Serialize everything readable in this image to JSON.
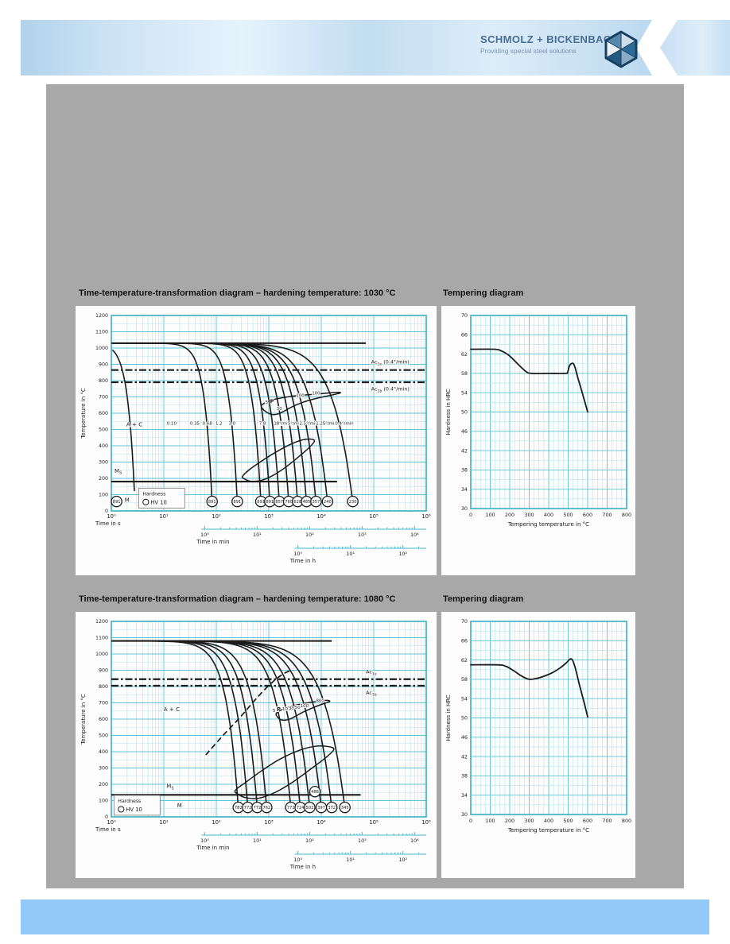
{
  "header": {
    "brand": "SCHMOLZ + BICKENBACH",
    "tagline": "Providing special steel solutions"
  },
  "colors": {
    "grid_minor": "#b5e2ec",
    "grid_major": "#5ec5d6",
    "frame": "#3aaec6",
    "curve": "#1b1b1b",
    "scalebar": "#45b8cc",
    "text": "#1a1a1a",
    "panel_gray": "#a8a8a8",
    "footer_blue": "#93c9f9",
    "brand_text": "#4a6d96",
    "brand_tagline": "#7e95ae"
  },
  "chart_data": [
    {
      "kind": "ttt",
      "type": "line",
      "title": "Time-temperature-transformation diagram – hardening temperature: 1030 °C",
      "hold_temp": 1030,
      "hold_end_log": 4.85,
      "ylabel": "Temperature in °C",
      "ylim": [
        0,
        1200
      ],
      "y_ticks": [
        0,
        100,
        200,
        300,
        400,
        500,
        600,
        700,
        800,
        900,
        1000,
        1100,
        1200
      ],
      "xlim_log": [
        0,
        6
      ],
      "x_tick_labels": [
        "10⁰",
        "10¹",
        "10²",
        "10³",
        "10⁴",
        "10⁵",
        "10⁶"
      ],
      "time_s_label": "Time in s",
      "min_scale": {
        "label": "Time in min",
        "tick_labels": [
          "10⁰",
          "10¹",
          "10²",
          "10³",
          "10⁴"
        ],
        "start_log": 1.778
      },
      "h_scale": {
        "label": "Time in h",
        "tick_labels": [
          "10⁰",
          "10¹",
          "10²"
        ],
        "start_log": 3.556
      },
      "ac_lines": [
        {
          "temp": 865,
          "main": "Ac",
          "sub": "1e",
          "rest": " (0.4°/min)",
          "label_log": 4.95,
          "label_temp": 905
        },
        {
          "temp": 790,
          "main": "Ac",
          "sub": "1b",
          "rest": " (0.4°/min)",
          "label_log": 4.95,
          "label_temp": 738
        }
      ],
      "ms_line": {
        "temp": 180,
        "end_log": 4.3,
        "label_main": "M",
        "label_sub": "S",
        "label_log": 0.06,
        "label_temp": 235
      },
      "region_label": {
        "text": "A + C",
        "log": 0.44,
        "temp": 520
      },
      "m_label": {
        "text": "M",
        "log": 0.3,
        "temp": 55
      },
      "legend": {
        "title": "Hardness",
        "circle_label": "HV 10",
        "log": 0.52,
        "temp": 140
      },
      "curve_ends": [
        0.45,
        1.92,
        2.4,
        2.85,
        3.02,
        3.2,
        3.38,
        3.55,
        3.72,
        3.9,
        4.12,
        4.6
      ],
      "steep_max": 3.2,
      "steep_min": 1.15,
      "circles": [
        {
          "log": 0.1,
          "value": "891"
        },
        {
          "log": 1.92,
          "value": "891"
        },
        {
          "log": 2.4,
          "value": "891"
        },
        {
          "log": 2.85,
          "value": "891"
        },
        {
          "log": 3.02,
          "value": "891"
        },
        {
          "log": 3.2,
          "value": "857"
        },
        {
          "log": 3.38,
          "value": "760"
        },
        {
          "log": 3.55,
          "value": "628"
        },
        {
          "log": 3.72,
          "value": "485"
        },
        {
          "log": 3.9,
          "value": "357"
        },
        {
          "log": 4.12,
          "value": "240"
        },
        {
          "log": 4.6,
          "value": "230"
        }
      ],
      "extra_circles": [],
      "rate_label_temp": 530,
      "rate_labels": [
        {
          "t": "0.10",
          "log": 1.15
        },
        {
          "t": "0.35",
          "log": 1.59
        },
        {
          "t": "0.68",
          "log": 1.83
        },
        {
          "t": "1.2",
          "log": 2.05
        },
        {
          "t": "3.0",
          "log": 2.3
        },
        {
          "t": "7.8",
          "log": 2.88
        },
        {
          "t": "18°/min",
          "log": 3.26
        },
        {
          "t": "5°/min",
          "log": 3.5
        },
        {
          "t": "2.5°/min",
          "log": 3.76
        },
        {
          "t": "1.25°/min",
          "log": 4.1
        },
        {
          "t": "0.4°/min",
          "log": 4.44
        }
      ],
      "p_labels": [
        {
          "t": "5",
          "log": 2.96,
          "temp": 658
        },
        {
          "t": "P",
          "log": 3.06,
          "temp": 660
        },
        {
          "t": "30",
          "log": 3.2,
          "temp": 620
        },
        {
          "t": "100",
          "log": 3.6,
          "temp": 700
        },
        {
          "t": "100",
          "log": 3.9,
          "temp": 714
        }
      ],
      "lenses": [
        [
          [
            2.86,
            648
          ],
          [
            2.96,
            668
          ],
          [
            3.12,
            686
          ],
          [
            3.4,
            702
          ],
          [
            3.7,
            712
          ],
          [
            4.0,
            720
          ],
          [
            4.3,
            728
          ],
          [
            4.36,
            724
          ],
          [
            4.18,
            710
          ],
          [
            3.92,
            692
          ],
          [
            3.66,
            668
          ],
          [
            3.46,
            642
          ],
          [
            3.3,
            614
          ],
          [
            3.18,
            596
          ],
          [
            3.06,
            592
          ],
          [
            2.96,
            606
          ],
          [
            2.88,
            628
          ]
        ],
        [
          [
            2.5,
            212
          ],
          [
            2.64,
            256
          ],
          [
            2.88,
            310
          ],
          [
            3.14,
            362
          ],
          [
            3.42,
            410
          ],
          [
            3.64,
            436
          ],
          [
            3.8,
            441
          ],
          [
            3.87,
            428
          ],
          [
            3.76,
            386
          ],
          [
            3.56,
            330
          ],
          [
            3.32,
            268
          ],
          [
            3.08,
            218
          ],
          [
            2.86,
            188
          ],
          [
            2.66,
            182
          ],
          [
            2.54,
            196
          ]
        ]
      ],
      "dashed_line": null
    },
    {
      "kind": "tempering",
      "type": "line",
      "title": "Tempering diagram",
      "xlabel": "Tempering temperature in °C",
      "ylabel": "Hardness in HRC",
      "xlim": [
        0,
        800
      ],
      "ylim": [
        30,
        70
      ],
      "x_ticks": [
        0,
        100,
        200,
        300,
        400,
        500,
        600,
        700,
        800
      ],
      "y_ticks": [
        30,
        34,
        38,
        42,
        46,
        50,
        54,
        58,
        62,
        66,
        70
      ],
      "minor_x": 25,
      "minor_y": 2,
      "points": [
        [
          0,
          63
        ],
        [
          120,
          63
        ],
        [
          160,
          62.6
        ],
        [
          200,
          61.6
        ],
        [
          240,
          60
        ],
        [
          280,
          58.5
        ],
        [
          310,
          58
        ],
        [
          400,
          58
        ],
        [
          485,
          58
        ],
        [
          497,
          58.2
        ],
        [
          505,
          59.4
        ],
        [
          515,
          60
        ],
        [
          527,
          60
        ],
        [
          537,
          59
        ],
        [
          548,
          57.3
        ],
        [
          565,
          55
        ],
        [
          582,
          52.6
        ],
        [
          600,
          50
        ]
      ]
    },
    {
      "kind": "ttt",
      "type": "line",
      "title": "Time-temperature-transformation diagram – hardening temperature: 1080 °C",
      "hold_temp": 1080,
      "hold_end_log": 4.2,
      "ylabel": "Temperature in °C",
      "ylim": [
        0,
        1200
      ],
      "y_ticks": [
        0,
        100,
        200,
        300,
        400,
        500,
        600,
        700,
        800,
        900,
        1000,
        1100,
        1200
      ],
      "xlim_log": [
        0,
        6
      ],
      "x_tick_labels": [
        "10⁰",
        "10¹",
        "10²",
        "10³",
        "10⁴",
        "10⁵",
        "10⁶"
      ],
      "time_s_label": "Time in s",
      "min_scale": {
        "label": "Time in min",
        "tick_labels": [
          "10⁰",
          "10¹",
          "10²",
          "10³",
          "10⁴"
        ],
        "start_log": 1.778
      },
      "h_scale": {
        "label": "Time in h",
        "tick_labels": [
          "10⁰",
          "10¹",
          "10²"
        ],
        "start_log": 3.556
      },
      "ac_lines": [
        {
          "temp": 845,
          "main": "Ac",
          "sub": "1e",
          "rest": "",
          "label_log": 4.85,
          "label_temp": 880
        },
        {
          "temp": 805,
          "main": "Ac",
          "sub": "1b",
          "rest": "",
          "label_log": 4.85,
          "label_temp": 752
        }
      ],
      "ms_line": {
        "temp": 135,
        "end_log": 4.75,
        "label_main": "M",
        "label_sub": "S",
        "label_log": 1.05,
        "label_temp": 178
      },
      "region_label": {
        "text": "A + C",
        "log": 1.15,
        "temp": 650
      },
      "m_label": {
        "text": "M",
        "log": 1.3,
        "temp": 58
      },
      "legend": {
        "title": "Hardness",
        "circle_label": "HV 10",
        "log": 0.05,
        "temp": 132
      },
      "curve_ends": [
        2.42,
        2.6,
        2.78,
        2.96,
        3.42,
        3.6,
        3.78,
        4.0,
        4.2,
        4.45
      ],
      "steep_max": 1.9,
      "steep_min": 1.1,
      "circles": [
        {
          "log": 2.42,
          "value": "782"
        },
        {
          "log": 2.6,
          "value": "772"
        },
        {
          "log": 2.78,
          "value": "772"
        },
        {
          "log": 2.96,
          "value": "762"
        },
        {
          "log": 3.42,
          "value": "772"
        },
        {
          "log": 3.6,
          "value": "724"
        },
        {
          "log": 3.78,
          "value": "502"
        },
        {
          "log": 4.0,
          "value": "397"
        },
        {
          "log": 4.2,
          "value": "372"
        },
        {
          "log": 4.45,
          "value": "345"
        }
      ],
      "extra_circles": [
        {
          "log": 3.88,
          "temp": 155,
          "value": "488"
        }
      ],
      "rate_label_temp": 530,
      "rate_labels": [],
      "p_labels": [
        {
          "t": "5",
          "log": 3.1,
          "temp": 645
        },
        {
          "t": "P",
          "log": 3.19,
          "temp": 648
        },
        {
          "t": "10",
          "log": 3.31,
          "temp": 653
        },
        {
          "t": "30",
          "log": 3.43,
          "temp": 658
        },
        {
          "t": "50",
          "log": 3.55,
          "temp": 664
        },
        {
          "t": "100",
          "log": 3.68,
          "temp": 672
        },
        {
          "t": "800",
          "log": 3.98,
          "temp": 706
        }
      ],
      "lenses": [
        [
          [
            3.14,
            634
          ],
          [
            3.26,
            660
          ],
          [
            3.44,
            680
          ],
          [
            3.66,
            696
          ],
          [
            3.88,
            707
          ],
          [
            4.1,
            715
          ],
          [
            4.16,
            708
          ],
          [
            4.02,
            692
          ],
          [
            3.84,
            670
          ],
          [
            3.66,
            644
          ],
          [
            3.5,
            616
          ],
          [
            3.38,
            598
          ],
          [
            3.26,
            594
          ],
          [
            3.18,
            608
          ]
        ],
        [
          [
            2.36,
            162
          ],
          [
            2.56,
            212
          ],
          [
            2.86,
            282
          ],
          [
            3.2,
            352
          ],
          [
            3.56,
            406
          ],
          [
            3.86,
            432
          ],
          [
            4.12,
            432
          ],
          [
            4.24,
            414
          ],
          [
            4.08,
            362
          ],
          [
            3.8,
            294
          ],
          [
            3.46,
            214
          ],
          [
            3.12,
            150
          ],
          [
            2.8,
            114
          ],
          [
            2.56,
            118
          ],
          [
            2.42,
            138
          ]
        ]
      ],
      "dashed_line": [
        [
          1.8,
          380
        ],
        [
          2.1,
          490
        ],
        [
          2.45,
          610
        ],
        [
          2.8,
          740
        ],
        [
          3.08,
          830
        ],
        [
          3.3,
          882
        ],
        [
          3.46,
          902
        ]
      ]
    },
    {
      "kind": "tempering",
      "type": "line",
      "title": "Tempering diagram",
      "xlabel": "Tempering temperature in °C",
      "ylabel": "Hardness in HRC",
      "xlim": [
        0,
        800
      ],
      "ylim": [
        30,
        70
      ],
      "x_ticks": [
        0,
        100,
        200,
        300,
        400,
        500,
        600,
        700,
        800
      ],
      "y_ticks": [
        30,
        34,
        38,
        42,
        46,
        50,
        54,
        58,
        62,
        66,
        70
      ],
      "minor_x": 25,
      "minor_y": 2,
      "points": [
        [
          0,
          61
        ],
        [
          140,
          61
        ],
        [
          180,
          60.7
        ],
        [
          220,
          59.8
        ],
        [
          260,
          58.7
        ],
        [
          300,
          58
        ],
        [
          340,
          58.2
        ],
        [
          380,
          58.7
        ],
        [
          420,
          59.4
        ],
        [
          460,
          60.4
        ],
        [
          490,
          61.4
        ],
        [
          510,
          62.2
        ],
        [
          520,
          62.1
        ],
        [
          530,
          61.2
        ],
        [
          542,
          59.5
        ],
        [
          555,
          57.3
        ],
        [
          570,
          55
        ],
        [
          585,
          52.7
        ],
        [
          600,
          50.2
        ]
      ]
    }
  ]
}
